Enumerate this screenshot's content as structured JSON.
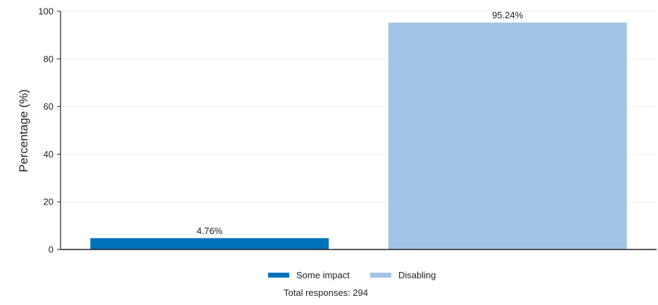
{
  "chart_data": {
    "type": "bar",
    "categories": [
      "Some impact",
      "Disabling"
    ],
    "values": [
      4.76,
      95.24
    ],
    "data_labels": [
      "4.76%",
      "95.24%"
    ],
    "colors": [
      "#0072bd",
      "#a2c4e6"
    ],
    "title": "",
    "xlabel": "",
    "ylabel": "Percentage (%)",
    "ylim": [
      0,
      100
    ],
    "yticks": [
      0,
      20,
      40,
      60,
      80,
      100
    ],
    "grid": true,
    "legend": {
      "position": "bottom-center",
      "entries": [
        "Some impact",
        "Disabling"
      ]
    },
    "footnote": "Total responses: 294"
  }
}
